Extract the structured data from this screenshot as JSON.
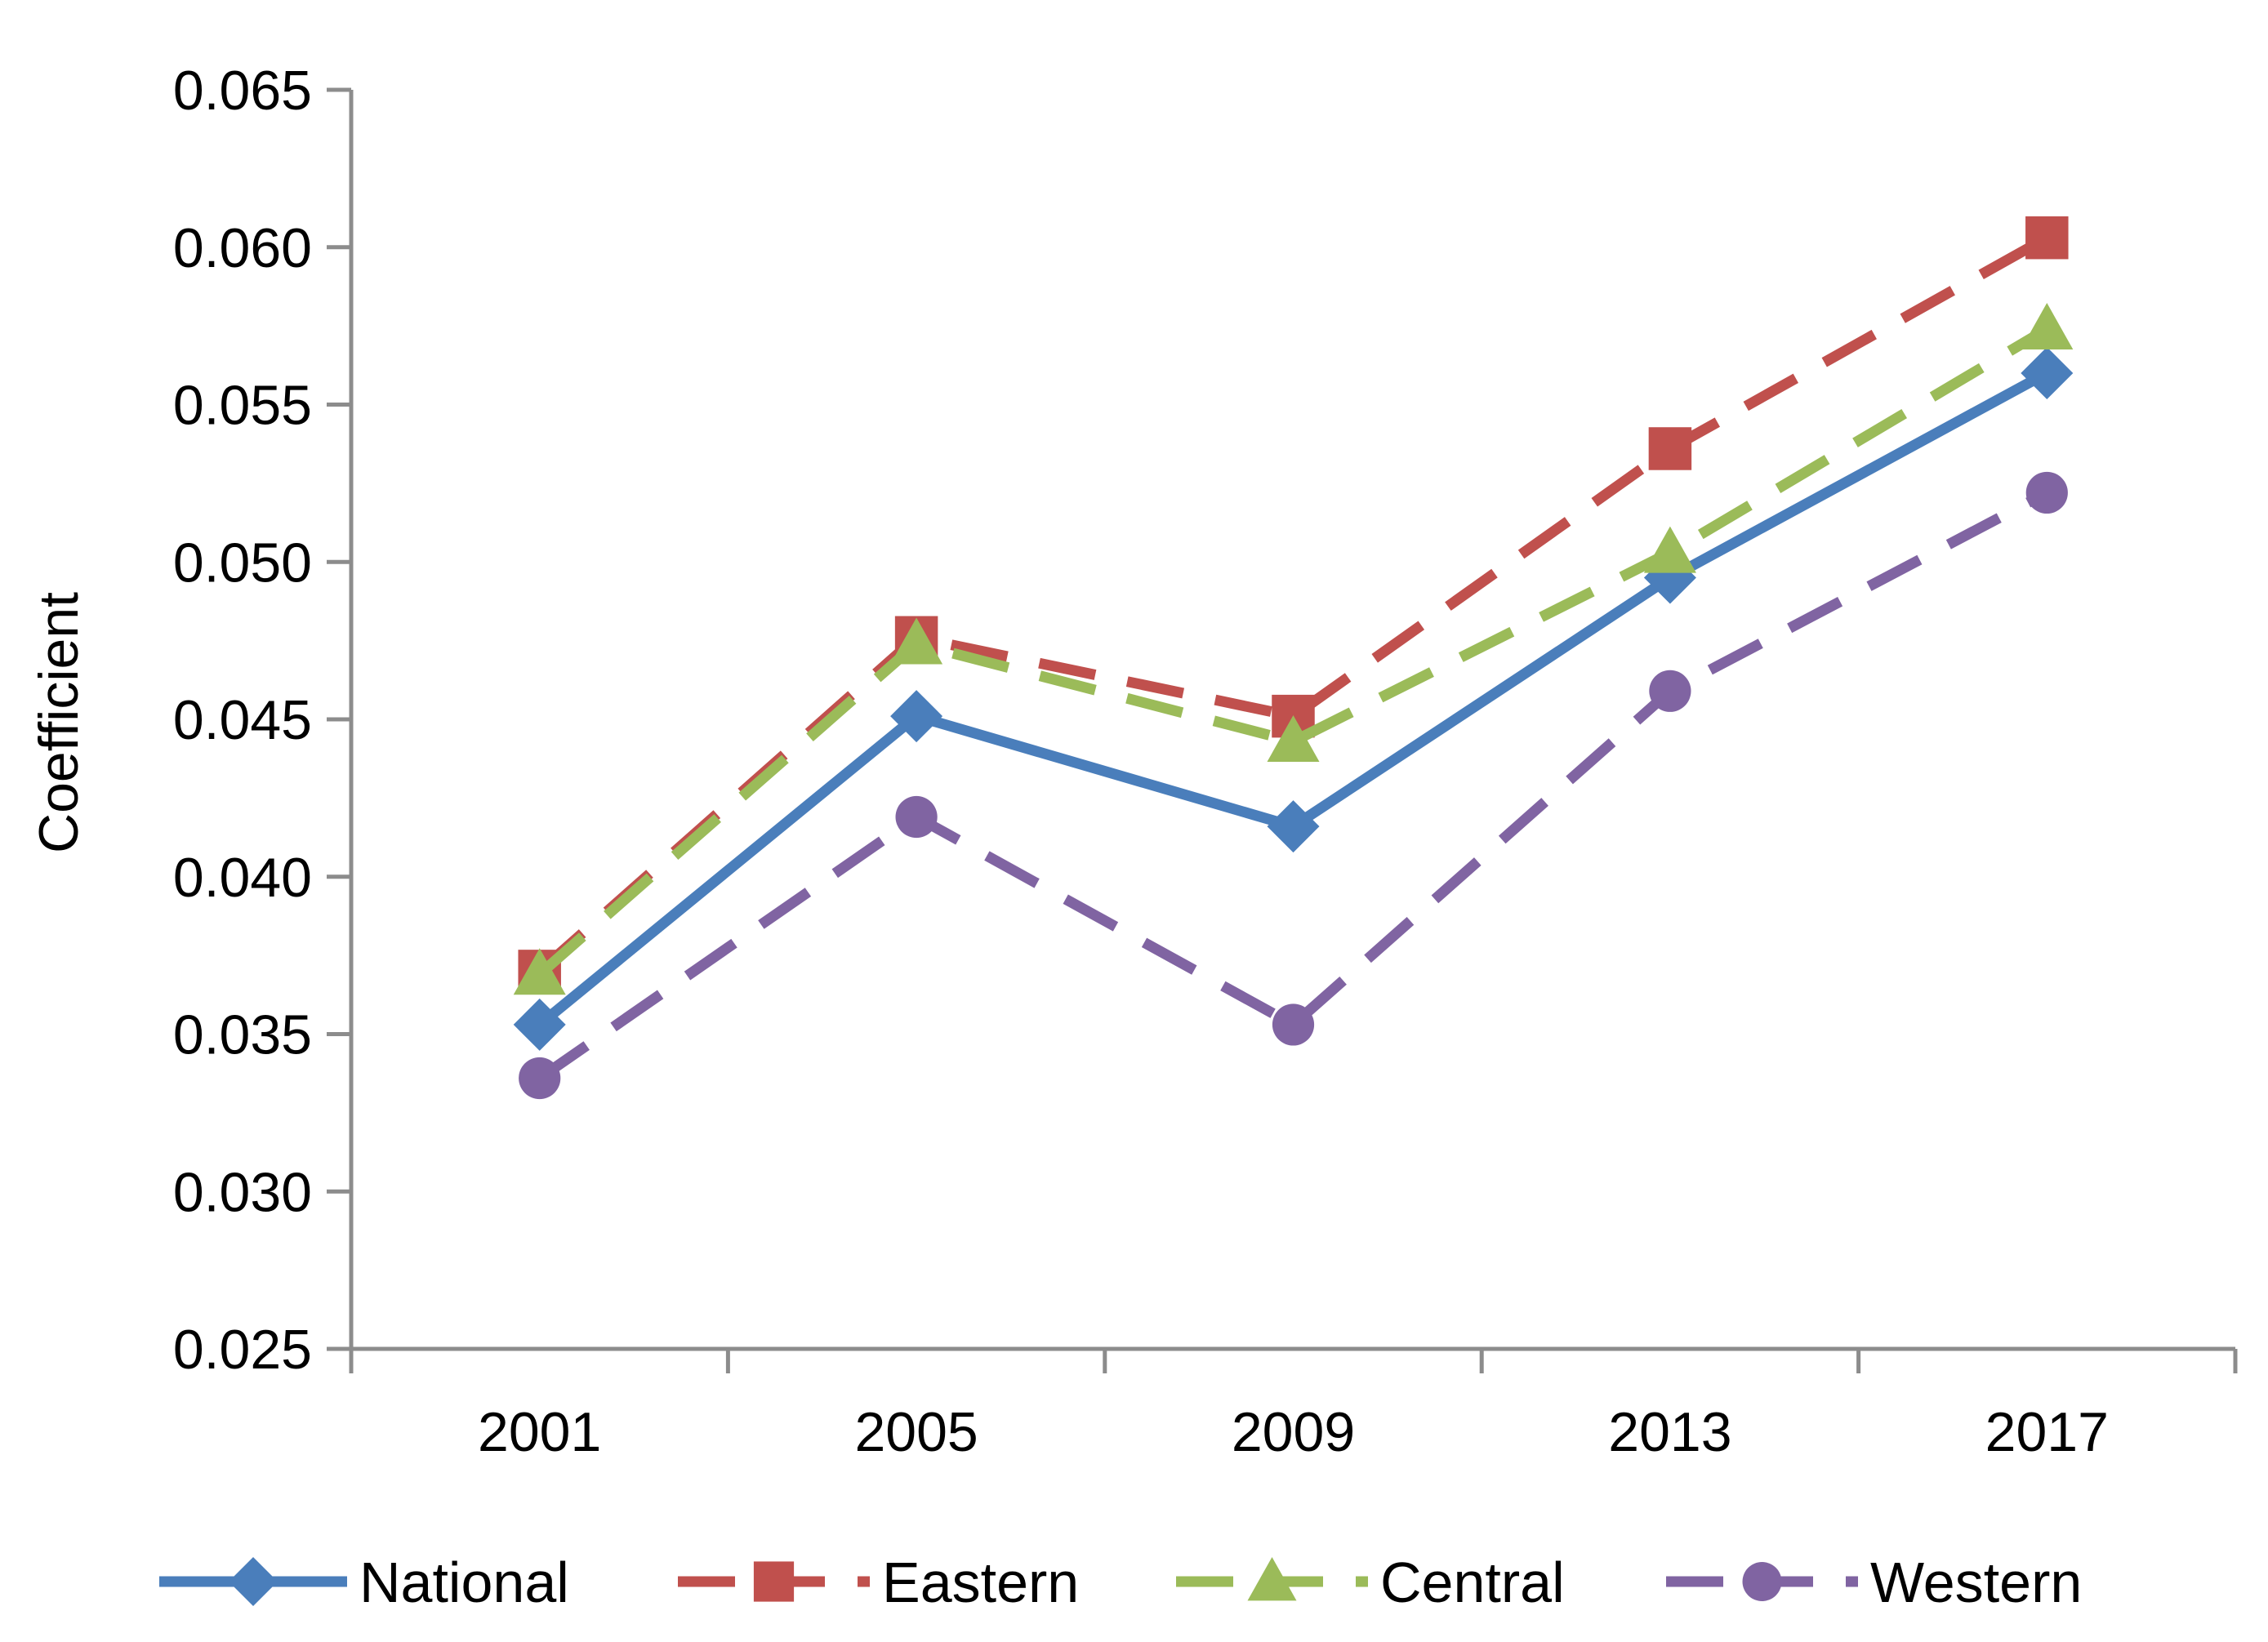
{
  "chart_data": {
    "type": "line",
    "title": "",
    "xlabel": "",
    "ylabel": "Coefficient",
    "ylim": [
      0.025,
      0.065
    ],
    "y_ticks": [
      "0.025",
      "0.030",
      "0.035",
      "0.040",
      "0.045",
      "0.050",
      "0.055",
      "0.060",
      "0.065"
    ],
    "categories": [
      "2001",
      "2005",
      "2009",
      "2013",
      "2017"
    ],
    "grid": false,
    "legend_position": "bottom",
    "series": [
      {
        "name": "National",
        "values": [
          0.0353,
          0.0451,
          0.0416,
          0.0495,
          0.056
        ],
        "color": "#4a7ebb",
        "marker": "diamond",
        "line_style": "solid"
      },
      {
        "name": "Eastern",
        "values": [
          0.037,
          0.0476,
          0.0451,
          0.0536,
          0.0603
        ],
        "color": "#c0504d",
        "marker": "square",
        "line_style": "dashed"
      },
      {
        "name": "Central",
        "values": [
          0.0369,
          0.0474,
          0.0443,
          0.0503,
          0.0574
        ],
        "color": "#9bbb59",
        "marker": "triangle",
        "line_style": "dashed"
      },
      {
        "name": "Western",
        "values": [
          0.0336,
          0.0419,
          0.0353,
          0.0459,
          0.0522
        ],
        "color": "#8064a2",
        "marker": "circle",
        "line_style": "dashed"
      }
    ]
  }
}
